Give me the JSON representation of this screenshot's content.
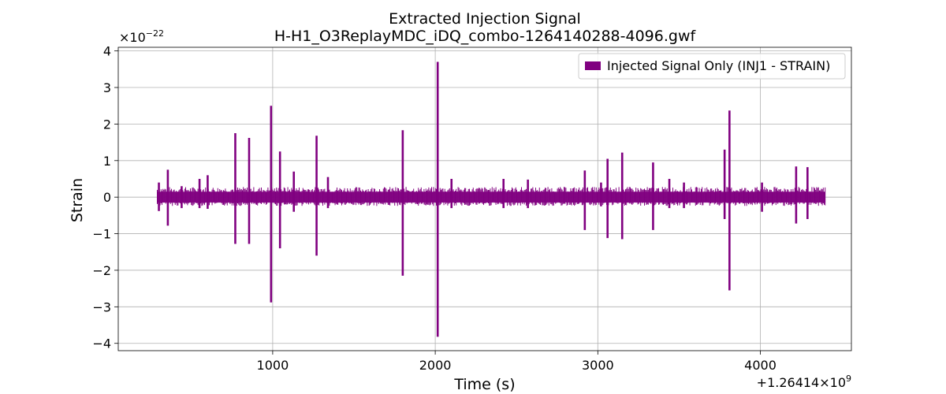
{
  "chart_data": {
    "type": "line",
    "title": "Extracted Injection Signal",
    "subtitle": "H-H1_O3ReplayMDC_iDQ_combo-1264140288-4096.gwf",
    "xlabel": "Time (s)",
    "ylabel": "Strain",
    "x_offset_text": "+1.26414×10",
    "x_offset_exponent": "9",
    "y_scale_text": "×10",
    "y_scale_exponent": "−22",
    "x_ticks": [
      1000,
      2000,
      3000,
      4000
    ],
    "x_tick_labels": [
      "1000",
      "2000",
      "3000",
      "4000"
    ],
    "y_ticks": [
      -4,
      -3,
      -2,
      -1,
      0,
      1,
      2,
      3,
      4
    ],
    "y_tick_labels": [
      "−4",
      "−3",
      "−2",
      "−1",
      "0",
      "1",
      "2",
      "3",
      "4"
    ],
    "xlim": [
      50,
      4560
    ],
    "ylim": [
      -4.2,
      4.1
    ],
    "grid": true,
    "legend_position": "top-right",
    "series": [
      {
        "name": "Injected Signal Only (INJ1 - STRAIN)",
        "color": "#800080",
        "x_range": [
          290,
          4400
        ],
        "baseline_band": [
          -0.15,
          0.15
        ],
        "spikes": [
          {
            "x": 300,
            "ymax": 0.4,
            "ymin": -0.38
          },
          {
            "x": 355,
            "ymax": 0.75,
            "ymin": -0.78
          },
          {
            "x": 440,
            "ymax": 0.3,
            "ymin": -0.3
          },
          {
            "x": 550,
            "ymax": 0.5,
            "ymin": -0.3
          },
          {
            "x": 600,
            "ymax": 0.6,
            "ymin": -0.32
          },
          {
            "x": 770,
            "ymax": 1.75,
            "ymin": -1.28
          },
          {
            "x": 855,
            "ymax": 1.62,
            "ymin": -1.28
          },
          {
            "x": 990,
            "ymax": 2.5,
            "ymin": -2.88
          },
          {
            "x": 1045,
            "ymax": 1.25,
            "ymin": -1.4
          },
          {
            "x": 1130,
            "ymax": 0.7,
            "ymin": -0.4
          },
          {
            "x": 1270,
            "ymax": 1.68,
            "ymin": -1.6
          },
          {
            "x": 1340,
            "ymax": 0.55,
            "ymin": -0.3
          },
          {
            "x": 1800,
            "ymax": 1.83,
            "ymin": -2.15
          },
          {
            "x": 2015,
            "ymax": 3.7,
            "ymin": -3.82
          },
          {
            "x": 2100,
            "ymax": 0.5,
            "ymin": -0.3
          },
          {
            "x": 2420,
            "ymax": 0.5,
            "ymin": -0.3
          },
          {
            "x": 2570,
            "ymax": 0.48,
            "ymin": -0.3
          },
          {
            "x": 2920,
            "ymax": 0.73,
            "ymin": -0.9
          },
          {
            "x": 3020,
            "ymax": 0.4,
            "ymin": -0.25
          },
          {
            "x": 3060,
            "ymax": 1.05,
            "ymin": -1.12
          },
          {
            "x": 3150,
            "ymax": 1.22,
            "ymin": -1.15
          },
          {
            "x": 3340,
            "ymax": 0.95,
            "ymin": -0.9
          },
          {
            "x": 3440,
            "ymax": 0.5,
            "ymin": -0.3
          },
          {
            "x": 3530,
            "ymax": 0.4,
            "ymin": -0.3
          },
          {
            "x": 3780,
            "ymax": 1.3,
            "ymin": -0.6
          },
          {
            "x": 3810,
            "ymax": 2.37,
            "ymin": -2.55
          },
          {
            "x": 4010,
            "ymax": 0.4,
            "ymin": -0.4
          },
          {
            "x": 4220,
            "ymax": 0.84,
            "ymin": -0.72
          },
          {
            "x": 4290,
            "ymax": 0.82,
            "ymin": -0.6
          }
        ]
      }
    ]
  }
}
